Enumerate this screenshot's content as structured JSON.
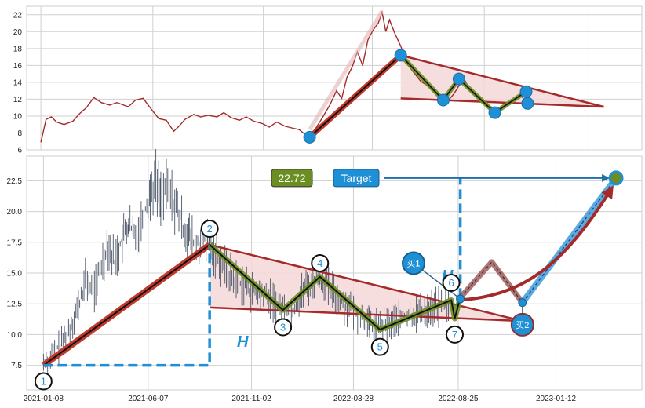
{
  "chart_data": [
    {
      "type": "line",
      "panel": "overview",
      "ylim": [
        6,
        23
      ],
      "yticks": [
        6,
        8,
        10,
        12,
        14,
        16,
        18,
        20,
        22
      ],
      "xlim": [
        "2020-12-20",
        "2023-03-24"
      ],
      "grid": true,
      "series": [
        {
          "color": "#a52a2a",
          "points": [
            [
              "2021-01-08",
              6.9
            ],
            [
              "2021-01-15",
              9.6
            ],
            [
              "2021-01-22",
              9.9
            ],
            [
              "2021-01-29",
              9.3
            ],
            [
              "2021-02-08",
              9.0
            ],
            [
              "2021-02-20",
              9.4
            ],
            [
              "2021-03-01",
              10.3
            ],
            [
              "2021-03-10",
              11.0
            ],
            [
              "2021-03-20",
              12.2
            ],
            [
              "2021-03-30",
              11.6
            ],
            [
              "2021-04-10",
              11.3
            ],
            [
              "2021-04-20",
              11.6
            ],
            [
              "2021-05-05",
              11.1
            ],
            [
              "2021-05-15",
              11.9
            ],
            [
              "2021-05-25",
              12.1
            ],
            [
              "2021-06-05",
              10.8
            ],
            [
              "2021-06-15",
              9.7
            ],
            [
              "2021-06-25",
              9.5
            ],
            [
              "2021-07-05",
              8.2
            ],
            [
              "2021-07-12",
              8.8
            ],
            [
              "2021-07-20",
              9.6
            ],
            [
              "2021-08-01",
              10.2
            ],
            [
              "2021-08-10",
              9.9
            ],
            [
              "2021-08-20",
              10.1
            ],
            [
              "2021-09-01",
              9.9
            ],
            [
              "2021-09-10",
              10.4
            ],
            [
              "2021-09-20",
              9.8
            ],
            [
              "2021-10-01",
              9.5
            ],
            [
              "2021-10-10",
              9.9
            ],
            [
              "2021-10-20",
              9.4
            ],
            [
              "2021-11-01",
              9.1
            ],
            [
              "2021-11-10",
              8.7
            ],
            [
              "2021-11-20",
              9.3
            ],
            [
              "2021-12-01",
              8.8
            ],
            [
              "2021-12-10",
              8.6
            ],
            [
              "2021-12-20",
              8.4
            ],
            [
              "2021-12-27",
              7.9
            ],
            [
              "2022-01-03",
              7.6
            ],
            [
              "2022-01-10",
              8.4
            ],
            [
              "2022-01-20",
              9.8
            ],
            [
              "2022-01-30",
              11.3
            ],
            [
              "2022-02-08",
              13.0
            ],
            [
              "2022-02-15",
              12.1
            ],
            [
              "2022-02-22",
              14.6
            ],
            [
              "2022-03-01",
              15.8
            ],
            [
              "2022-03-08",
              17.6
            ],
            [
              "2022-03-15",
              16.0
            ],
            [
              "2022-03-22",
              19.0
            ],
            [
              "2022-03-29",
              20.2
            ],
            [
              "2022-04-05",
              21.0
            ],
            [
              "2022-04-10",
              22.3
            ],
            [
              "2022-04-15",
              20.0
            ],
            [
              "2022-04-20",
              21.4
            ],
            [
              "2022-04-27",
              19.8
            ],
            [
              "2022-05-05",
              18.3
            ],
            [
              "2022-05-10",
              17.1
            ],
            [
              "2022-05-15",
              16.0
            ],
            [
              "2022-05-22",
              15.2
            ],
            [
              "2022-06-01",
              14.1
            ],
            [
              "2022-06-10",
              13.6
            ],
            [
              "2022-06-20",
              12.8
            ],
            [
              "2022-07-01",
              12.2
            ],
            [
              "2022-07-08",
              11.9
            ],
            [
              "2022-07-15",
              12.6
            ],
            [
              "2022-07-22",
              13.6
            ],
            [
              "2022-07-29",
              14.4
            ],
            [
              "2022-08-05",
              13.1
            ],
            [
              "2022-08-15",
              12.3
            ],
            [
              "2022-08-25",
              11.6
            ],
            [
              "2022-09-01",
              10.9
            ],
            [
              "2022-09-08",
              10.4
            ],
            [
              "2022-09-15",
              10.9
            ],
            [
              "2022-09-25",
              11.4
            ],
            [
              "2022-10-05",
              11.9
            ],
            [
              "2022-10-12",
              12.6
            ],
            [
              "2022-10-20",
              11.6
            ],
            [
              "2022-10-25",
              12.8
            ]
          ]
        }
      ],
      "pattern": {
        "rise": [
          [
            "2022-01-03",
            7.5
          ],
          [
            "2022-05-05",
            17.2
          ]
        ],
        "upper_line": [
          [
            "2022-05-05",
            17.2
          ],
          [
            "2023-02-01",
            11.1
          ]
        ],
        "lower_line": [
          [
            "2022-05-05",
            12.1
          ],
          [
            "2023-02-01",
            11.1
          ]
        ],
        "zigzag": [
          [
            "2022-05-05",
            17.2
          ],
          [
            "2022-07-01",
            11.9
          ],
          [
            "2022-07-22",
            14.4
          ],
          [
            "2022-09-08",
            10.4
          ],
          [
            "2022-10-20",
            12.9
          ],
          [
            "2022-10-25",
            11.5
          ]
        ],
        "pivots": [
          [
            "2022-01-03",
            7.5
          ],
          [
            "2022-05-05",
            17.2
          ],
          [
            "2022-07-01",
            11.9
          ],
          [
            "2022-07-22",
            14.4
          ],
          [
            "2022-09-08",
            10.4
          ],
          [
            "2022-10-20",
            12.9
          ],
          [
            "2022-10-22",
            11.5
          ]
        ]
      }
    },
    {
      "type": "line",
      "panel": "detail",
      "ylim": [
        5.5,
        24.5
      ],
      "yticks": [
        7.5,
        10.0,
        12.5,
        15.0,
        17.5,
        20.0,
        22.5
      ],
      "xlim": [
        "2020-12-15",
        "2023-05-15"
      ],
      "xticks": [
        "2021-01-08",
        "2021-06-07",
        "2021-11-02",
        "2022-03-28",
        "2022-08-25",
        "2023-01-12"
      ],
      "grid": true,
      "series": [
        {
          "color": "#4a5566",
          "points": [
            [
              "2021-01-08",
              7.8
            ],
            [
              "2021-01-20",
              8.4
            ],
            [
              "2021-02-01",
              9.1
            ],
            [
              "2021-02-15",
              10.6
            ],
            [
              "2021-03-01",
              12.6
            ],
            [
              "2021-03-10",
              14.6
            ],
            [
              "2021-03-20",
              13.2
            ],
            [
              "2021-04-01",
              15.6
            ],
            [
              "2021-04-10",
              17.4
            ],
            [
              "2021-04-20",
              16.0
            ],
            [
              "2021-05-01",
              17.7
            ],
            [
              "2021-05-10",
              18.9
            ],
            [
              "2021-05-20",
              17.8
            ],
            [
              "2021-06-01",
              19.8
            ],
            [
              "2021-06-10",
              21.6
            ],
            [
              "2021-06-18",
              22.6
            ],
            [
              "2021-06-25",
              21.2
            ],
            [
              "2021-07-05",
              21.8
            ],
            [
              "2021-07-15",
              20.6
            ],
            [
              "2021-07-25",
              19.0
            ],
            [
              "2021-08-05",
              18.0
            ],
            [
              "2021-08-15",
              17.2
            ],
            [
              "2021-08-25",
              17.7
            ],
            [
              "2021-09-03",
              17.4
            ],
            [
              "2021-09-15",
              16.2
            ],
            [
              "2021-09-25",
              15.4
            ],
            [
              "2021-10-05",
              14.6
            ],
            [
              "2021-10-20",
              14.1
            ],
            [
              "2021-11-01",
              13.6
            ],
            [
              "2021-11-15",
              13.3
            ],
            [
              "2021-12-01",
              12.8
            ],
            [
              "2021-12-15",
              12.1
            ],
            [
              "2022-01-01",
              12.0
            ],
            [
              "2022-01-15",
              13.6
            ],
            [
              "2022-02-01",
              14.4
            ],
            [
              "2022-02-08",
              14.7
            ],
            [
              "2022-02-20",
              13.9
            ],
            [
              "2022-03-05",
              13.0
            ],
            [
              "2022-03-20",
              12.2
            ],
            [
              "2022-04-05",
              11.6
            ],
            [
              "2022-04-20",
              10.8
            ],
            [
              "2022-05-01",
              10.6
            ],
            [
              "2022-05-15",
              10.8
            ],
            [
              "2022-06-01",
              11.2
            ],
            [
              "2022-06-20",
              11.6
            ],
            [
              "2022-07-10",
              12.0
            ],
            [
              "2022-08-01",
              12.3
            ],
            [
              "2022-08-15",
              12.6
            ]
          ]
        }
      ],
      "pattern": {
        "rise": [
          [
            "2021-01-08",
            7.5
          ],
          [
            "2021-09-03",
            17.3
          ]
        ],
        "upper_line": [
          [
            "2021-09-03",
            17.3
          ],
          [
            "2022-11-25",
            11.1
          ]
        ],
        "lower_line": [
          [
            "2021-09-03",
            12.2
          ],
          [
            "2022-11-25",
            11.1
          ]
        ],
        "zigzag": [
          [
            "2021-09-03",
            17.3
          ],
          [
            "2021-12-17",
            12.0
          ],
          [
            "2022-02-08",
            14.7
          ],
          [
            "2022-05-05",
            10.4
          ],
          [
            "2022-08-15",
            12.8
          ],
          [
            "2022-08-20",
            11.3
          ],
          [
            "2022-08-28",
            13.0
          ]
        ],
        "projection": [
          [
            "2022-08-28",
            13.0
          ],
          [
            "2022-10-12",
            15.9
          ],
          [
            "2022-11-25",
            12.6
          ]
        ],
        "target_path": [
          [
            "2022-11-25",
            12.6
          ],
          [
            "2023-04-08",
            22.72
          ]
        ],
        "target_curve": [
          [
            "2022-08-28",
            12.8
          ],
          [
            "2022-11-25",
            13.2
          ],
          [
            "2023-01-20",
            15.4
          ],
          [
            "2023-04-02",
            21.9
          ]
        ],
        "target_price": 22.72,
        "target_label": "Target",
        "target_value_label": "22.72",
        "height_label": "H",
        "target_pivot": [
          "2023-04-08",
          22.72
        ],
        "buy_markers": [
          {
            "label": "买1",
            "x": "2022-06-22",
            "y": 15.8,
            "to": [
              "2022-08-28",
              12.9
            ]
          },
          {
            "label": "买2",
            "x": "2022-11-25",
            "y": 10.8,
            "to": [
              "2022-11-25",
              12.6
            ]
          }
        ],
        "wave_labels": [
          {
            "label": "1",
            "x": "2021-01-08",
            "y": 6.2
          },
          {
            "label": "2",
            "x": "2021-09-03",
            "y": 18.6
          },
          {
            "label": "3",
            "x": "2021-12-17",
            "y": 10.6
          },
          {
            "label": "4",
            "x": "2022-02-08",
            "y": 15.8
          },
          {
            "label": "5",
            "x": "2022-05-05",
            "y": 9.0
          },
          {
            "label": "6",
            "x": "2022-08-15",
            "y": 14.2
          },
          {
            "label": "7",
            "x": "2022-08-20",
            "y": 10.0
          }
        ],
        "colors": {
          "rise": "#c0392b",
          "upper_line": "#a52a2a",
          "zigzag": "#6b8e23",
          "triangle_fill": "#f6d8d8",
          "dashed": "#1f8fd6",
          "target_box": "#1f8fd6",
          "value_box": "#6b8e23",
          "target_path": "#4aa3df",
          "buy_marker": "#1f8fd6"
        }
      }
    }
  ]
}
